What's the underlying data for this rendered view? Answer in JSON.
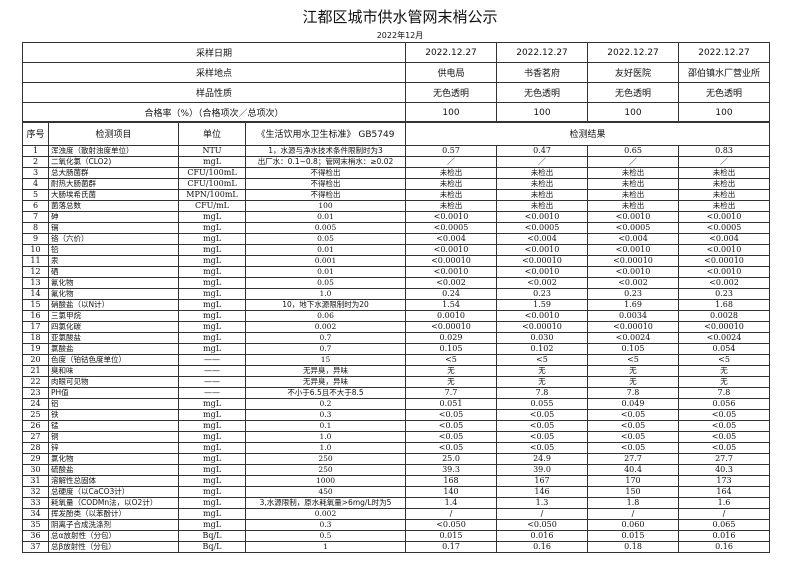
{
  "title": "江都区城市供水管网末梢公示",
  "month": "2022年12月",
  "summary": [
    {
      "label": "采样日期",
      "values": [
        "2022.12.27",
        "2022.12.27",
        "2022.12.27",
        "2022.12.27"
      ]
    },
    {
      "label": "采样地点",
      "values": [
        "供电局",
        "书香茗府",
        "友好医院",
        "邵伯镇水厂营业所"
      ]
    },
    {
      "label": "样品性质",
      "values": [
        "无色透明",
        "无色透明",
        "无色透明",
        "无色透明"
      ]
    },
    {
      "label": "合格率（%）（合格项次／总项次）",
      "values": [
        "100",
        "100",
        "100",
        "100"
      ]
    }
  ],
  "headers": {
    "seq": "序号",
    "item": "检测项目",
    "unit": "单位",
    "standard": "《生活饮用水卫生标准》 GB5749",
    "results": "检测结果"
  },
  "rows": [
    [
      "1",
      "浑浊度（散射浊度单位）",
      "NTU",
      "1，水源与净水技术条件限制时为3",
      "0.57",
      "0.47",
      "0.65",
      "0.83"
    ],
    [
      "2",
      "二氧化氯（CLO2)",
      "mgL",
      "出厂水：0.1~0.8；管网末梢水：≥0.02",
      "／",
      "／",
      "／",
      "／"
    ],
    [
      "3",
      "总大肠菌群",
      "CFU/100mL",
      "不得检出",
      "未检出",
      "未检出",
      "未检出",
      "未检出"
    ],
    [
      "4",
      "耐热大肠菌群",
      "CFU/100mL",
      "不得检出",
      "未检出",
      "未检出",
      "未检出",
      "未检出"
    ],
    [
      "5",
      "大肠埃希氏菌",
      "MPN/100mL",
      "不得检出",
      "未检出",
      "未检出",
      "未检出",
      "未检出"
    ],
    [
      "6",
      "菌落总数",
      "CFU/mL",
      "100",
      "未检出",
      "未检出",
      "未检出",
      "未检出"
    ],
    [
      "7",
      "砷",
      "mgL",
      "0.01",
      "<0.0010",
      "<0.0010",
      "<0.0010",
      "<0.0010"
    ],
    [
      "8",
      "镉",
      "mgL",
      "0.005",
      "<0.0005",
      "<0.0005",
      "<0.0005",
      "<0.0005"
    ],
    [
      "9",
      "铬（六价）",
      "mgL",
      "0.05",
      "<0.004",
      "<0.004",
      "<0.004",
      "<0.004"
    ],
    [
      "10",
      "铅",
      "mgL",
      "0.01",
      "<0.0010",
      "<0.0010",
      "<0.0010",
      "<0.0010"
    ],
    [
      "11",
      "汞",
      "mgL",
      "0.001",
      "<0.00010",
      "<0.00010",
      "<0.00010",
      "<0.00010"
    ],
    [
      "12",
      "硒",
      "mgL",
      "0.01",
      "<0.0010",
      "<0.0010",
      "<0.0010",
      "<0.0010"
    ],
    [
      "13",
      "氰化物",
      "mgL",
      "0.05",
      "<0.002",
      "<0.002",
      "<0.002",
      "<0.002"
    ],
    [
      "14",
      "氟化物",
      "mgL",
      "1.0",
      "0.24",
      "0.23",
      "0.23",
      "0.23"
    ],
    [
      "15",
      "硝酸盐（以N计）",
      "mgL",
      "10，地下水源限制时为20",
      "1.54",
      "1.59",
      "1.69",
      "1.68"
    ],
    [
      "16",
      "三氯甲烷",
      "mgL",
      "0.06",
      "0.0010",
      "<0.0010",
      "0.0034",
      "0.0028"
    ],
    [
      "17",
      "四氯化碳",
      "mgL",
      "0.002",
      "<0.00010",
      "<0.00010",
      "<0.00010",
      "<0.00010"
    ],
    [
      "18",
      "亚氯酸盐",
      "mgL",
      "0.7",
      "0.029",
      "0.030",
      "<0.0024",
      "<0.0024"
    ],
    [
      "19",
      "氯酸盐",
      "mgL",
      "0.7",
      "0.105",
      "0.102",
      "0.105",
      "0.054"
    ],
    [
      "20",
      "色度（铂钴色度单位）",
      "——",
      "15",
      "<5",
      "<5",
      "<5",
      "<5"
    ],
    [
      "21",
      "臭和味",
      "——",
      "无异臭，异味",
      "无",
      "无",
      "无",
      "无"
    ],
    [
      "22",
      "肉眼可见物",
      "——",
      "无异臭，异味",
      "无",
      "无",
      "无",
      "无"
    ],
    [
      "23",
      "PH值",
      "——",
      "不小于6.5且不大于8.5",
      "7.7",
      "7.8",
      "7.8",
      "7.8"
    ],
    [
      "24",
      "铝",
      "mgL",
      "0.2",
      "0.051",
      "0.055",
      "0.049",
      "0.056"
    ],
    [
      "25",
      "铁",
      "mgL",
      "0.3",
      "<0.05",
      "<0.05",
      "<0.05",
      "<0.05"
    ],
    [
      "26",
      "锰",
      "mgL",
      "0.1",
      "<0.05",
      "<0.05",
      "<0.05",
      "<0.05"
    ],
    [
      "27",
      "铜",
      "mgL",
      "1.0",
      "<0.05",
      "<0.05",
      "<0.05",
      "<0.05"
    ],
    [
      "28",
      "锌",
      "mgL",
      "1.0",
      "<0.05",
      "<0.05",
      "<0.05",
      "<0.05"
    ],
    [
      "29",
      "氯化物",
      "mgL",
      "250",
      "25.0",
      "24.9",
      "27.7",
      "27.7"
    ],
    [
      "30",
      "硫酸盐",
      "mgL",
      "250",
      "39.3",
      "39.0",
      "40.4",
      "40.3"
    ],
    [
      "31",
      "溶解性总固体",
      "mgL",
      "1000",
      "168",
      "167",
      "170",
      "173"
    ],
    [
      "32",
      "总硬度（以CaCO3计）",
      "mgL",
      "450",
      "140",
      "146",
      "150",
      "164"
    ],
    [
      "33",
      "耗氧量（CODMn法，以O2计）",
      "mgL",
      "3,水源限制，原水耗氧量>6mg/L时为5",
      "1.4",
      "1.3",
      "1.8",
      "1.6"
    ],
    [
      "34",
      "挥发酚类（以苯酚计）",
      "mgL",
      "0.002",
      "/",
      "/",
      "/",
      "/"
    ],
    [
      "35",
      "阴离子合成洗涤剂",
      "mgL",
      "0.3",
      "<0.050",
      "<0.050",
      "0.060",
      "0.065"
    ],
    [
      "36",
      "总α放射性（分包）",
      "Bq/L",
      "0.5",
      "0.015",
      "0.016",
      "0.015",
      "0.016"
    ],
    [
      "37",
      "总β放射性（分包）",
      "Bq/L",
      "1",
      "0.17",
      "0.16",
      "0.18",
      "0.16"
    ]
  ]
}
